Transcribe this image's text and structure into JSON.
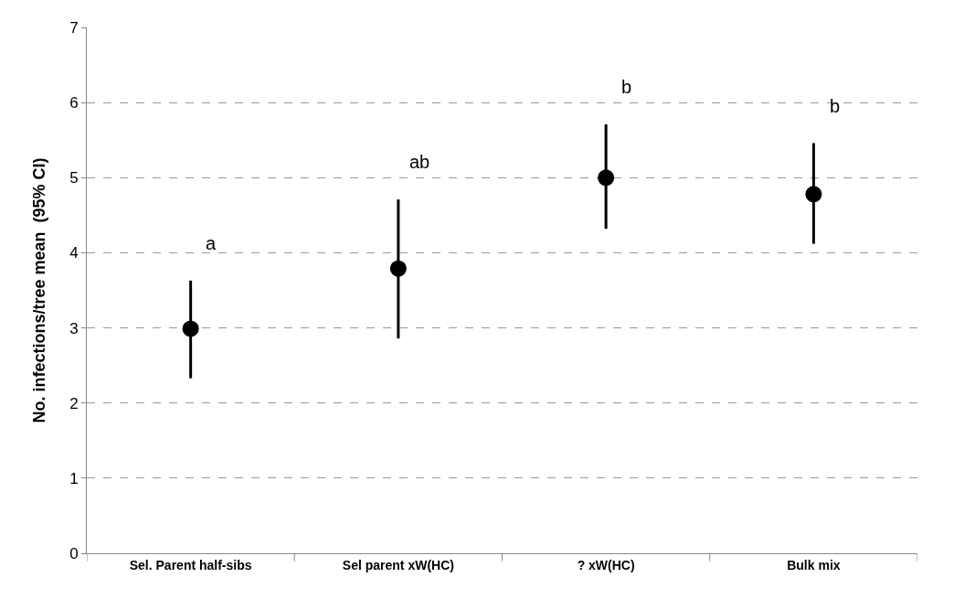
{
  "chart_data": {
    "type": "scatter",
    "ylabel": "No. infections/tree mean  (95% CI)",
    "categories": [
      "Sel. Parent half-sibs",
      "Sel parent xW(HC)",
      "? xW(HC)",
      "Bulk mix"
    ],
    "series": [
      {
        "color": "#000000",
        "values": [
          2.99,
          3.79,
          5.0,
          4.78
        ],
        "errors": [
          [
            2.33,
            3.63
          ],
          [
            2.86,
            4.71
          ],
          [
            4.32,
            5.71
          ],
          [
            4.12,
            5.46
          ]
        ]
      }
    ],
    "marker": "circle",
    "ylim": [
      0,
      7
    ],
    "yticks": [
      0,
      1,
      2,
      3,
      4,
      5,
      6,
      7
    ],
    "grid": "y",
    "annotations": [
      "a",
      "ab",
      "b",
      "b"
    ]
  }
}
